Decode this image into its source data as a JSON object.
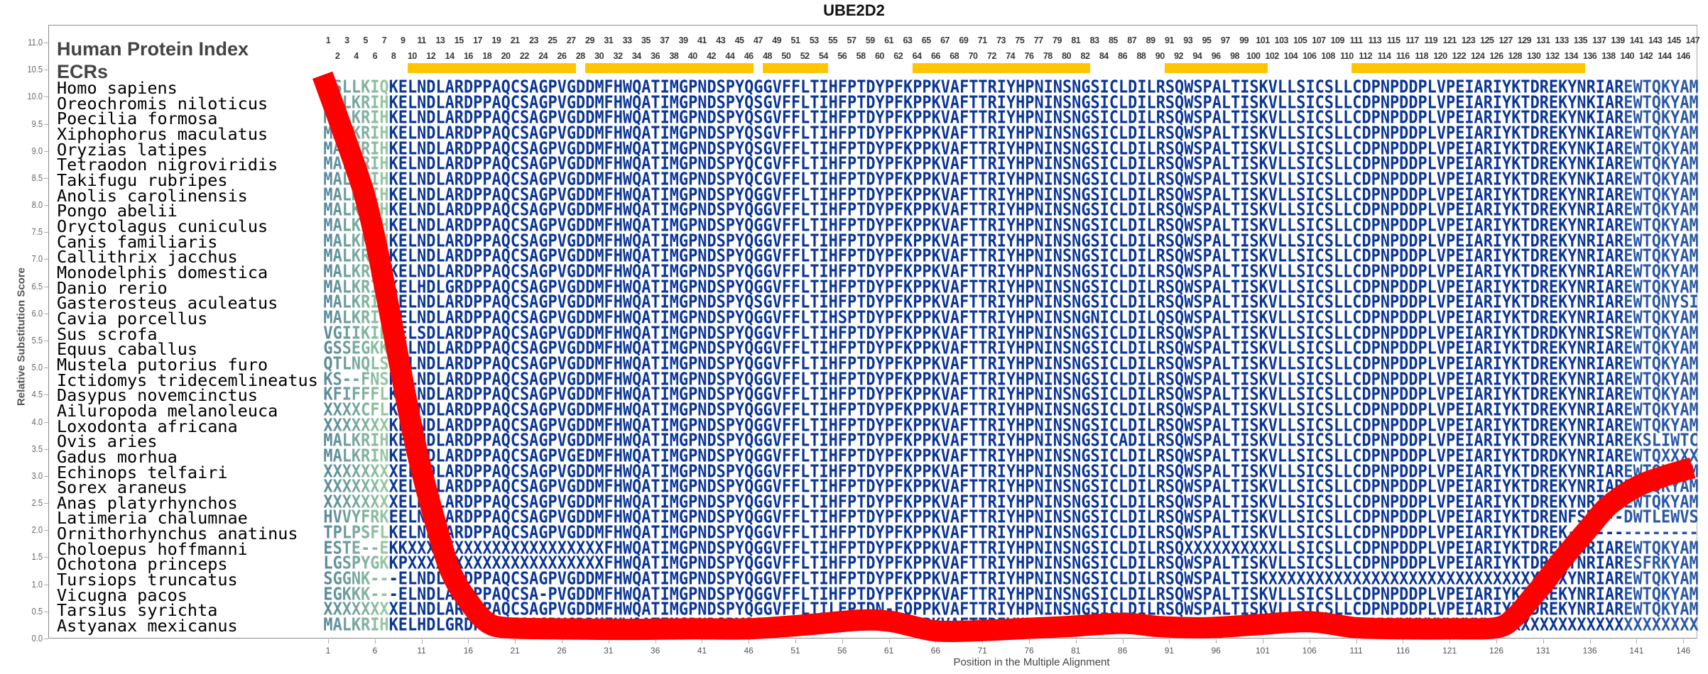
{
  "title": "UBE2D2",
  "header": {
    "index_label": "Human Protein Index",
    "ecr_label": "ECRs"
  },
  "colors": {
    "seq_main": "#0b3597",
    "seq_tail": "#2a58a6",
    "seq_edge_start": "#5a8a9b",
    "seq_edge_end": "#95c6a1",
    "curve": "#ff0000",
    "ecr": "#ffc600",
    "index_text": "#3a3a3a"
  },
  "index_odd": [
    1,
    3,
    5,
    7,
    9,
    11,
    13,
    15,
    17,
    19,
    21,
    23,
    25,
    27,
    29,
    31,
    33,
    35,
    37,
    39,
    41,
    43,
    45,
    47,
    49,
    51,
    53,
    55,
    57,
    59,
    61,
    63,
    65,
    67,
    69,
    71,
    73,
    75,
    77,
    79,
    81,
    83,
    85,
    87,
    89,
    91,
    93,
    95,
    97,
    99,
    101,
    103,
    105,
    107,
    109,
    111,
    113,
    115,
    117,
    119,
    121,
    123,
    125,
    127,
    129,
    131,
    133,
    135,
    137,
    139,
    141,
    143,
    145,
    147
  ],
  "index_even": [
    2,
    4,
    6,
    8,
    10,
    12,
    14,
    16,
    18,
    20,
    22,
    24,
    26,
    28,
    30,
    32,
    34,
    36,
    38,
    40,
    42,
    44,
    46,
    48,
    50,
    52,
    54,
    56,
    58,
    60,
    62,
    64,
    66,
    68,
    70,
    72,
    74,
    76,
    78,
    80,
    82,
    84,
    86,
    88,
    90,
    92,
    94,
    96,
    98,
    100,
    102,
    104,
    106,
    108,
    110,
    112,
    114,
    116,
    118,
    120,
    122,
    124,
    126,
    128,
    130,
    132,
    134,
    136,
    138,
    140,
    142,
    144,
    146
  ],
  "rows": [
    {
      "name": "Homo sapiens",
      "seq": "LSLLKIQKELNDLARDPPAQCSAGPVGDDMFHWQATIMGPNDSPYQGGVFFLTIHFPTDYPFKPPKVAFTTRIYHPNINSNGSICLDILRSQWSPALTISKVLLSICSLLCDPNPDDPLVPEIARIYKTDREKYNRIAREWTQKYAM"
    },
    {
      "name": "Oreochromis niloticus",
      "seq": "MALKRIHKELNDLARDPPAQCSAGPVGDDMFHWQATIMGPNDSPYQSGVFFLTIHFPTDYPFKPPKVAFTTRIYHPNINSNGSICLDILRSQWSPALTISKVLLSICSLLCDPNPDDPLVPEIARIYKTDREKYNKIAREWTQKYAM"
    },
    {
      "name": "Poecilia formosa",
      "seq": "MALKRIHKELNDLARDPPAQCSAGPVGDDMFHWQATIMGPNDSPYQSGVFFLTIHFPTDYPFKPPKVAFTTRIYHPNINSNGSICLDILRSQWSPALTISKVLLSICSLLCDPNPDDPLVPEIARIYKTDREKYNKIAREWTQKYAM"
    },
    {
      "name": "Xiphophorus maculatus",
      "seq": "MALKRIHKELNDLARDPPAQCSAGPVGDDMFHWQATIMGPNDSPYQSGVFFLTIHFPTDYPFKPPKVAFTTRIYHPNINSNGSICLDILRSQWSPALTISKVLLSICSLLCDPNPDDPLVPEIARIYKTDREKYNKIAREWTQKYAM"
    },
    {
      "name": "Oryzias latipes",
      "seq": "MALKRIHKELNDLARDPPAQCSAGPVGDDMFHWQATIMGPNDSPYQSGVFFLTIHFPTDYPFKPPKVAFTTRIYHPNINSNGSICLDILRSQWSPALTISKVLLSICSLLCDPNPDDPLVPEIARIYKTDREKYNKIAREWTQKYAM"
    },
    {
      "name": "Tetraodon nigroviridis",
      "seq": "MALKRIHKELNDLARDPPAQCSAGPVGDDMFHWQATIMGPNDSPYQCGVFFLTIHFPTDYPFKPPKVAFTTRIYHPNINSNGSICLDILRSQWSPALTISKVLLSICSLLCDPNPDDPLVPEIARIYKTDREKYNKIAREWTQKYAM"
    },
    {
      "name": "Takifugu rubripes",
      "seq": "MALKRIHKELNDLARDPPAQCSAGPVGDDMFHWQATIMGPNDSPYQCGVFFLTIHFPTDYPFKPPKVAFTTRIYHPNINSNGSICLDILRSQWSPALTISKVLLSICSLLCDPNPDDPLVPEIARIYKTDREKYNKIAREWTQKYAM"
    },
    {
      "name": "Anolis carolinensis",
      "seq": "MALKRIHKELNDLARDPPAQCSAGPVGDDMFHWQATIMGPNDSPYQGGVFFLTIHFPTDYPFKPPKVAFTTRIYHPNINSNGSICLDILRSQWSPALTISKVLLSICSLLCDPNPDDPLVPEIARIYKTDREKYNRIAREWTQKYAM"
    },
    {
      "name": "Pongo abelii",
      "seq": "MALKRIHKELNDLARDPPAQCSAGPVGDDMFHWQATIMGPNDSPYQGGVFFLTIHFPTDYPFKPPKVAFTTRIYHPNINSNGSICLDILRSQWSPALTISKVLLSICSLLCDPNPDDPLVPEIARIYKTDREKYNRIAREWTQKYAM"
    },
    {
      "name": "Oryctolagus cuniculus",
      "seq": "MALKRIHKELNDLARDPPAQCSAGPVGDDMFHWQATIMGPNDSPYQGGVFFLTIHFPTDYPFKPPKVAFTTRIYHPNINSNGSICLDILRSQWSPALTISKVLLSICSLLCDPNPDDPLVPEIARIYKTDREKYNRIAREWTQKYAM"
    },
    {
      "name": "Canis familiaris",
      "seq": "MALKRIHKELNDLARDPPAQCSAGPVGDDMFHWQATIMGPNDSPYQGGVFFLTIHFPTDYPFKPPKVAFTTRIYHPNINSNGSICLDILRSQWSPALTISKVLLSICSLLCDPNPDDPLVPEIARIYKTDREKYNRIAREWTQKYAM"
    },
    {
      "name": "Callithrix jacchus",
      "seq": "MALKRIHKELNDLARDPPAQCSAGPVGDDMFHWQATIMGPNDSPYQGGVFFLTIHFPTDYPFKPPKVAFTTRIYHPNINSNGSICLDILRSQWSPALTISKVLLSICSLLCDPNPDDPLVPEIARIYKTDREKYNRIAREWTQKYAM"
    },
    {
      "name": "Monodelphis domestica",
      "seq": "MALKRIHKELNDLARDPPAQCSAGPVGDDMFHWQATIMGPNDSPYQGGVFFLTIHFPTDYPFKPPKVAFTTRIYHPNINSNGSICLDILRSQWSPALTISKVLLSICSLLCDPNPDDPLVPEIARIYKTDREKYNRIAREWTQKYAM"
    },
    {
      "name": "Danio rerio",
      "seq": "MALKRIHKELHDLGRDPPAQCSAGPVGDDMFHWQATIMGPNDSPYQGGVFFLTIHFPTDYPFKPPKVAFTTRIYHPNINSNGSICLDILRSQWSPALTISKVLLSICSLLCDPNPDDPLVPEIARIYKTDREKYNRIAREWTQKYAM"
    },
    {
      "name": "Gasterosteus aculeatus",
      "seq": "MALKRIHKELNDLARDPPAQCSAGPVGDDMFHWQATIMGPNDSPYQSGVFFLTIHFPTDYPFKPPKVAFTTRIYHPNINSNGSICLDILRSQWSPALTISKVLLSICSLLCDPNPDDPLVPEIARIYKTDREKYNRIAREWTQNYSI"
    },
    {
      "name": "Cavia porcellus",
      "seq": "MALKRIHKELNDLARDPPAQCSAGPVGDDMFHWQATIMGPNDSPYQGGVFFLTIHSPTDYPFKPPKVAFTTRIYHPNINSNGNICLDILQSQWSPALTISKVLLSICSLLCDPNPDDPLVPEIARIYKTDREKYNRIAREWTQKYAM"
    },
    {
      "name": "Sus scrofa",
      "seq": "VGIIKIDKELSDLARDPPAQCSAGPVGDDMFHWQATIMGPNDSPYQGGVFFLTIHFPTDYPFKPPKVAFTTRIYHPNINSNGSICLDILRSQWSPALTISKVLLSICSLLCDPNPDDPLVPEIARIYKTDRDKYNRISREWTQKYAM"
    },
    {
      "name": "Equus caballus",
      "seq": "GSSEGKKHELNDLARDPPAQCSAGPVGDDMFHWQATIMGPNDSPYQGGVFFLTIHFPTDYPFKPPKVAFTTRIYHPNINSNGSICLDILRSQWSPALTISKVLLSICSLLCDPNPDDPLVPEIARIYKTDREKYNRIAREWTQKYAM"
    },
    {
      "name": "Mustela putorius furo",
      "seq": "QTLNQLSHELNDLARDPPAQCSAGPVGDDMFHWQATIMGPNDSPYQGGVFFLTIHFPTDYPFKPPKVAFTTRIYHPNINSNGSICLDILRSQWSPALTISKVLLSICSLLCDPNPDDPLVPEIARIYKTDREKYNRIAREWTQKYAM"
    },
    {
      "name": "Ictidomys tridecemlineatus",
      "seq": "KS--FNSKELNDLARDPPAQCSAGPVGDDMFHWQATIMGPNDSPYQGGVFFLTIHFPTDYPFKPPKVAFTTRIYHPNINSNGSICLDILRSQWSPALTISKVLLSICSLLCDPNPDDPLVPEIARIYKTDREKYNRIAREWTQKYAM"
    },
    {
      "name": "Dasypus novemcinctus",
      "seq": "KFIFFFLKELNDLARDPPAQCSAGPVGDDMFHWQATIMGPNDSPYQGGVFFLTIHFPTDYPFKPPKVAFTTRIYHPNINSNGSICLDILRSQWSPALTISKVLLSICSLLCDPNPDDPLVPEIARIYKTDREKYNRIAREWTQKYAM"
    },
    {
      "name": "Ailuropoda melanoleuca",
      "seq": "XXXXCFLKELNDLARDPPAQCSAGPVGDDMFHWQATIMGPNDSPYQGGVFFLTIHFPTDYPFKPPKVAFTTRIYHPNINSNGSICLDILRSQWSPALTISKVLLSICSLLCDPNPDDPLVPEIARIYKTDREKYNRIAREWTQKYAM"
    },
    {
      "name": "Loxodonta africana",
      "seq": "XXXXXXXKELNDLARDPPAQCSAGPVGDDMFHWQATIMGPNDSPYQGGVFFLTIHFPTDYPFKPPKVAFTTRIYHPNINSNGSICLDILRSQWSPALTISKVLLSICSLLCDPNPDDPLVPEIARIYKTDREKYNRIAREWTQKYAM"
    },
    {
      "name": "Ovis aries",
      "seq": "MALKRIHKELNDLARDPPAQCSAGPVGDDMFHWQATIMGPNDSPYQGGVFFLTIHFPTDYPFKPPKVAFTTRIYHPNINSNGSICADILRSQWSPALTISKVLLSICSLLCDPNPDDPLVPEIARIYKTDREKYNRIAREKSLIWTC"
    },
    {
      "name": "Gadus morhua",
      "seq": "MALKRINKELTDLARDPPAQCSAGPVGEDMFHWQATIMGPNDSPYQGGVFFLTIHFPTDYPFKPPKVAFTTRIYHPNINSNGSICLDILRSQWSPALTISKVLLSICSLLCDPNPDDPLVPEIARIYKTDRDKYNRIAREWTQXXXX"
    },
    {
      "name": "Echinops telfairi",
      "seq": "XXXXXXXXELNDLARDPPAQCSAGPVGDDMFHWQATIMGPNDSPYQGGVFFLTIHFPTDYPFKPPKVAFTTRIYHPNINSNGSICLDILRSQWSPALTISKVLLSICSLLCDPNPDDPLVPEIARIYKTDREKYNRIAREWTQKYAM"
    },
    {
      "name": "Sorex araneus",
      "seq": "XXXXXXXXELNDLARDPPAQCSAGPVGDDMFHWQATIMGPNDSPYQGGVFFLTIHFPTDYPFKPPKVAFTTRIYHPNINSNGSICLDILRSQWSPALTISKVLLSICSLLCDPNPDDPLVPEIARIYKTDREKYNRIAREWTQKYAM"
    },
    {
      "name": "Anas platyrhynchos",
      "seq": "XXXXXXXXELNDLARDPPAQCSAGPVGDDMFHWQATIMGPNDSPYQGGVFFLTIHFPTDYPFKPPKVAFTTRIYHPNINSNGSICLDILRSQWSPALTISKVLLSICSLLCDPNPDDPLVPEIARIYKTDREKYNRIAREWTQKYAM"
    },
    {
      "name": "Latimeria chalumnae",
      "seq": "HVVYFRKEELNDLARDPPAQCSAGPVGDDMFHWQATIMGPNDSPYQGGVFFLTIHFPTDYPFKPPKVAFTTRIYHPNINSNGSICLDILRSQWSPALTISKVLLSICSLLCDPNPDDPLVPEIARIYKTDRENFSRV--DWTLEWVS"
    },
    {
      "name": "Ornithorhynchus anatinus",
      "seq": "TPLPSFLKELNDLARDPPAQCSAGPVGDDMFHWQATIMGPNDSPYQGGVFFLTIHFPTDYPFKPPKVAFTTRIYHPNINSNGSICLDILRSQWSPALTISKVLLSICSLLCDPNPDDPLVPEIARIYKTDREK--------------"
    },
    {
      "name": "Choloepus hoffmanni",
      "seq": "ESTE--EKKXXXXXXXXXXXXXXXXXXXXXFHWQATIMGPNDSPYQGGVFFLTIHFPTDYPFKPPKVAFTTRIYHPNINSNGSICLDILRSQXXXXXXXXXXLLSICSLLCDPNPDDPLVPEIARIYKTDREKYNRIAREWTQKYAM"
    },
    {
      "name": "Ochotona princeps",
      "seq": "LGSPYGKKPXXXXXXXXXXXXXXXXXXXXXFHWQATIMGPNDSPYQGGVFFLTIHFPTDYPFKPPKVAFTTRIYHPNINSNGSICLDILRSQWSPALTISKVLLSICSLLCDPNPDDPLVPEIARIYKTDREKYNRIARESFRKYAM"
    },
    {
      "name": "Tursiops truncatus",
      "seq": "SGGNK---ELNDLARDPPAQCSAGPVGDDMFHWQATIMGPNDSPYQGGVFFLTIHFPTDYPFKPPKVAFTTRIYHPNINSNGSICLDILRSQWSPALTISKXXXXXXXXXXXXXXXXXXXXXXXXXXXXXXXXYNRIAREWTQKYAM"
    },
    {
      "name": "Vicugna pacos",
      "seq": "EGKKK---ELNDLARDPPAQCSA-PVGDDMFHWQATIMGPNDSPYQGGVFFLTIHFPTDYPFKPPKVAFTTRIYHPNINSNGSICLDILRSQWSPALTISKVLLSICSLLCDPNPDDPLVPEIARIYKTDREKYNRIAREWTQKYAM"
    },
    {
      "name": "Tarsius syrichta",
      "seq": "XXXXXXXXELNDLARDPPAQCSAGPVGDDMFHWQATIMGPNDSPYQGGVFFLTILFPTDN-FQPPKVAFTTRIYHPNINSNGSICLDILRSQWSPALTISKVLLSICSLLCDPNPDDPLVPEIARIYKTDREKYNRIAREWTQKYAM"
    },
    {
      "name": "Astyanax mexicanus",
      "seq": "MALKRIHKELHDLGRDPPAQCSAGPVGDDMFHWQATIMGPNDSPYQGGVFFLTIHFPTDYPFKPPKVAFTTRIYHPNINSNGSICLDILRSQWSPALTISKELYSVCLLYCXXXXXXXXXXXXXXXXXXXXXXXXXXXXXXXXXXXX"
    }
  ],
  "chart_data": {
    "type": "line",
    "title": "UBE2D2",
    "xlabel": "Position in the Multiple Alignment",
    "ylabel": "Relative Substitution Score",
    "xlim": [
      1,
      147
    ],
    "ylim": [
      0,
      11
    ],
    "x_ticks": [
      1,
      6,
      11,
      16,
      21,
      26,
      31,
      36,
      41,
      46,
      51,
      56,
      61,
      66,
      71,
      76,
      81,
      86,
      91,
      96,
      101,
      106,
      111,
      116,
      121,
      126,
      131,
      136,
      141,
      146
    ],
    "y_ticks": [
      "0.0",
      "0.5",
      "1.0",
      "1.5",
      "2.0",
      "2.5",
      "3.0",
      "3.5",
      "4.0",
      "4.5",
      "5.0",
      "5.5",
      "6.0",
      "6.5",
      "7.0",
      "7.5",
      "8.0",
      "8.5",
      "9.0",
      "9.5",
      "10.0",
      "10.5",
      "11.0"
    ],
    "grid": false,
    "series": [
      {
        "x": [
          0.4,
          2.5,
          4.7,
          6,
          7,
          8.5,
          10.5,
          13.2,
          14.5,
          16.3,
          18,
          20,
          25,
          30,
          35,
          40,
          46,
          52,
          58,
          61,
          63,
          66,
          70,
          75,
          80,
          86,
          90,
          95,
          100,
          106,
          111,
          116,
          121,
          126,
          128,
          130,
          131,
          133,
          136,
          138,
          141,
          144,
          147
        ],
        "y": [
          10.4,
          9.4,
          8.3,
          7.4,
          6.55,
          5.2,
          3.46,
          1.71,
          1.1,
          0.62,
          0.3,
          0.2,
          0.18,
          0.17,
          0.17,
          0.18,
          0.18,
          0.25,
          0.34,
          0.32,
          0.25,
          0.14,
          0.14,
          0.18,
          0.22,
          0.28,
          0.22,
          0.2,
          0.25,
          0.31,
          0.2,
          0.18,
          0.18,
          0.2,
          0.4,
          0.8,
          1.0,
          1.45,
          2.06,
          2.45,
          2.8,
          3.0,
          3.15
        ]
      }
    ],
    "ecr_regions": [
      [
        10,
        27
      ],
      [
        29,
        46
      ],
      [
        48,
        54
      ],
      [
        64,
        82
      ],
      [
        91,
        101
      ],
      [
        111,
        135
      ]
    ]
  }
}
